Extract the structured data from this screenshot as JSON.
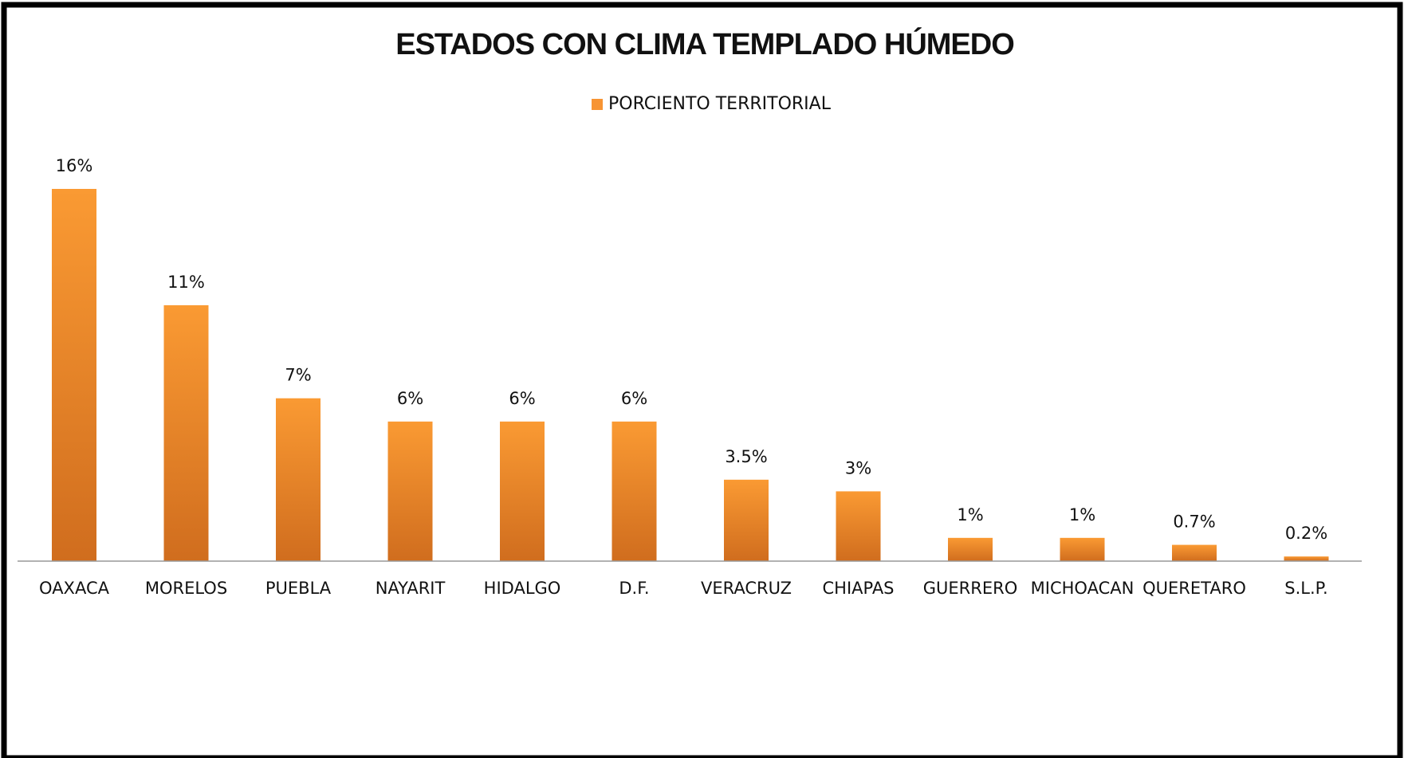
{
  "chart_data": {
    "type": "bar",
    "title": "ESTADOS CON CLIMA TEMPLADO HÚMEDO",
    "categories": [
      "OAXACA",
      "MORELOS",
      "PUEBLA",
      "NAYARIT",
      "HIDALGO",
      "D.F.",
      "VERACRUZ",
      "CHIAPAS",
      "GUERRERO",
      "MICHOACAN",
      "QUERETARO",
      "S.L.P."
    ],
    "series": [
      {
        "name": "PORCIENTO TERRITORIAL",
        "color": "#f79433",
        "values": [
          16,
          11,
          7,
          6,
          6,
          6,
          3.5,
          3,
          1,
          1,
          0.7,
          0.2
        ],
        "value_labels": [
          "16%",
          "11%",
          "7%",
          "6%",
          "6%",
          "6%",
          "3.5%",
          "3%",
          "1%",
          "1%",
          "0.7%",
          "0.2%"
        ]
      }
    ],
    "legend": "top"
  }
}
